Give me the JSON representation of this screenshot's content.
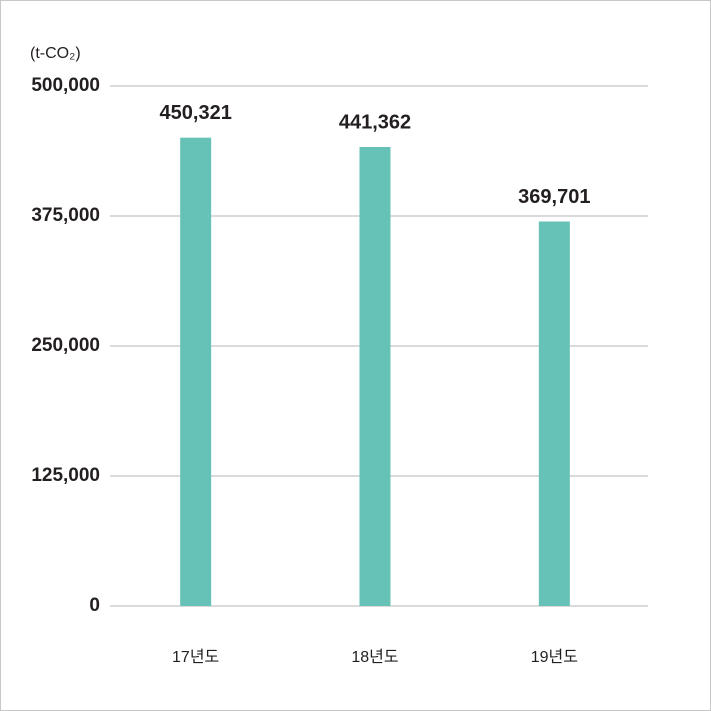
{
  "chart_data": {
    "type": "bar",
    "y_axis_label": "(t-CO₂)",
    "categories": [
      "17년도",
      "18년도",
      "19년도"
    ],
    "values": [
      450321,
      441362,
      369701
    ],
    "value_labels": [
      "450,321",
      "441,362",
      "369,701"
    ],
    "color": "#66c2b6",
    "ylim": [
      0,
      500000
    ],
    "yticks": [
      {
        "value": 0,
        "label": "0"
      },
      {
        "value": 125000,
        "label": "125,000"
      },
      {
        "value": 250000,
        "label": "250,000"
      },
      {
        "value": 375000,
        "label": "375,000"
      },
      {
        "value": 500000,
        "label": "500,000"
      }
    ],
    "grid": true
  }
}
